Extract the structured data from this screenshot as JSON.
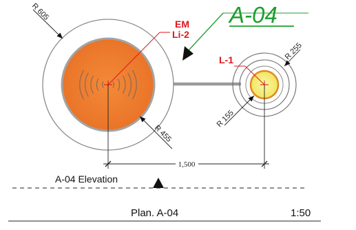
{
  "callout": {
    "text": "A-04",
    "color": "#1e9e2e"
  },
  "large_fixture": {
    "tag_primary": "EM",
    "tag_secondary": "Li-2",
    "outer_radius_label": "R 605",
    "inner_radius_label": "R 455",
    "fill_color": "#f0812f",
    "tag_color": "#e0161c"
  },
  "small_fixture": {
    "tag": "L-1",
    "outer_radius_label": "R 255",
    "inner_radius_label": "R 155",
    "fill_color": "#f7f07a",
    "tag_color": "#e0161c"
  },
  "dimension": {
    "label": "1,500"
  },
  "section_marker": {
    "label": "A-04 Elevation"
  },
  "title_block": {
    "plan_label": "Plan. A-04",
    "scale": "1:50"
  }
}
